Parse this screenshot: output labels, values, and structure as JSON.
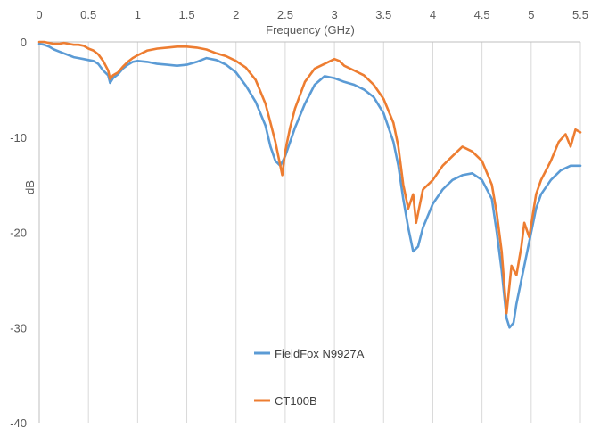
{
  "chart_data": {
    "type": "line",
    "title": "",
    "xlabel": "Frequency (GHz)",
    "ylabel": "dB",
    "xlim": [
      0,
      5.5
    ],
    "ylim": [
      -40,
      0
    ],
    "x_ticks": [
      "0",
      "0.5",
      "1",
      "1.5",
      "2",
      "2.5",
      "3",
      "3.5",
      "4",
      "4.5",
      "5",
      "5.5"
    ],
    "y_ticks": [
      "0",
      "-10",
      "-20",
      "-30",
      "-40"
    ],
    "x_axis_position": "top",
    "grid": "vertical",
    "legend_position": "inside-bottom-center",
    "series": [
      {
        "name": "FieldFox N9927A",
        "color": "#5B9BD5",
        "points": [
          [
            0.0,
            -0.2
          ],
          [
            0.05,
            -0.3
          ],
          [
            0.1,
            -0.5
          ],
          [
            0.15,
            -0.8
          ],
          [
            0.2,
            -1.0
          ],
          [
            0.25,
            -1.2
          ],
          [
            0.3,
            -1.4
          ],
          [
            0.35,
            -1.6
          ],
          [
            0.4,
            -1.7
          ],
          [
            0.45,
            -1.8
          ],
          [
            0.5,
            -1.9
          ],
          [
            0.55,
            -2.0
          ],
          [
            0.6,
            -2.3
          ],
          [
            0.65,
            -3.0
          ],
          [
            0.7,
            -3.5
          ],
          [
            0.72,
            -4.3
          ],
          [
            0.75,
            -3.8
          ],
          [
            0.8,
            -3.4
          ],
          [
            0.85,
            -2.8
          ],
          [
            0.9,
            -2.4
          ],
          [
            0.95,
            -2.1
          ],
          [
            1.0,
            -2.0
          ],
          [
            1.1,
            -2.1
          ],
          [
            1.2,
            -2.3
          ],
          [
            1.3,
            -2.4
          ],
          [
            1.4,
            -2.5
          ],
          [
            1.5,
            -2.4
          ],
          [
            1.6,
            -2.1
          ],
          [
            1.7,
            -1.7
          ],
          [
            1.8,
            -1.9
          ],
          [
            1.9,
            -2.4
          ],
          [
            2.0,
            -3.2
          ],
          [
            2.1,
            -4.6
          ],
          [
            2.2,
            -6.3
          ],
          [
            2.3,
            -8.8
          ],
          [
            2.35,
            -11.0
          ],
          [
            2.4,
            -12.5
          ],
          [
            2.45,
            -13.0
          ],
          [
            2.5,
            -12.0
          ],
          [
            2.55,
            -10.5
          ],
          [
            2.6,
            -9.0
          ],
          [
            2.7,
            -6.5
          ],
          [
            2.8,
            -4.5
          ],
          [
            2.9,
            -3.6
          ],
          [
            3.0,
            -3.8
          ],
          [
            3.1,
            -4.2
          ],
          [
            3.2,
            -4.5
          ],
          [
            3.3,
            -5.0
          ],
          [
            3.4,
            -5.8
          ],
          [
            3.5,
            -7.5
          ],
          [
            3.6,
            -10.5
          ],
          [
            3.65,
            -13.0
          ],
          [
            3.7,
            -16.5
          ],
          [
            3.75,
            -19.5
          ],
          [
            3.8,
            -22.0
          ],
          [
            3.85,
            -21.5
          ],
          [
            3.9,
            -19.5
          ],
          [
            4.0,
            -17.0
          ],
          [
            4.1,
            -15.5
          ],
          [
            4.2,
            -14.5
          ],
          [
            4.3,
            -14.0
          ],
          [
            4.4,
            -13.8
          ],
          [
            4.5,
            -14.5
          ],
          [
            4.6,
            -16.5
          ],
          [
            4.65,
            -20.0
          ],
          [
            4.7,
            -24.0
          ],
          [
            4.75,
            -29.0
          ],
          [
            4.78,
            -30.0
          ],
          [
            4.82,
            -29.5
          ],
          [
            4.85,
            -27.5
          ],
          [
            4.9,
            -25.0
          ],
          [
            5.0,
            -20.0
          ],
          [
            5.05,
            -17.5
          ],
          [
            5.1,
            -16.0
          ],
          [
            5.2,
            -14.5
          ],
          [
            5.3,
            -13.5
          ],
          [
            5.4,
            -13.0
          ],
          [
            5.5,
            -13.0
          ]
        ]
      },
      {
        "name": "CT100B",
        "color": "#ED7D31",
        "points": [
          [
            0.0,
            0.0
          ],
          [
            0.05,
            0.0
          ],
          [
            0.1,
            -0.1
          ],
          [
            0.15,
            -0.2
          ],
          [
            0.2,
            -0.2
          ],
          [
            0.25,
            -0.1
          ],
          [
            0.3,
            -0.2
          ],
          [
            0.35,
            -0.3
          ],
          [
            0.4,
            -0.3
          ],
          [
            0.45,
            -0.4
          ],
          [
            0.5,
            -0.7
          ],
          [
            0.55,
            -0.9
          ],
          [
            0.6,
            -1.3
          ],
          [
            0.65,
            -2.0
          ],
          [
            0.7,
            -3.0
          ],
          [
            0.72,
            -3.9
          ],
          [
            0.75,
            -3.5
          ],
          [
            0.8,
            -3.2
          ],
          [
            0.85,
            -2.6
          ],
          [
            0.9,
            -2.1
          ],
          [
            0.95,
            -1.7
          ],
          [
            1.0,
            -1.4
          ],
          [
            1.1,
            -0.9
          ],
          [
            1.2,
            -0.7
          ],
          [
            1.3,
            -0.6
          ],
          [
            1.4,
            -0.5
          ],
          [
            1.5,
            -0.5
          ],
          [
            1.6,
            -0.6
          ],
          [
            1.7,
            -0.8
          ],
          [
            1.8,
            -1.2
          ],
          [
            1.9,
            -1.5
          ],
          [
            2.0,
            -2.0
          ],
          [
            2.1,
            -2.7
          ],
          [
            2.2,
            -4.0
          ],
          [
            2.3,
            -6.5
          ],
          [
            2.35,
            -8.5
          ],
          [
            2.4,
            -10.5
          ],
          [
            2.45,
            -13.0
          ],
          [
            2.47,
            -14.0
          ],
          [
            2.5,
            -11.5
          ],
          [
            2.55,
            -9.0
          ],
          [
            2.6,
            -7.0
          ],
          [
            2.7,
            -4.2
          ],
          [
            2.8,
            -2.8
          ],
          [
            2.9,
            -2.3
          ],
          [
            3.0,
            -1.8
          ],
          [
            3.05,
            -2.0
          ],
          [
            3.1,
            -2.5
          ],
          [
            3.2,
            -3.0
          ],
          [
            3.3,
            -3.5
          ],
          [
            3.4,
            -4.5
          ],
          [
            3.5,
            -6.0
          ],
          [
            3.6,
            -8.5
          ],
          [
            3.65,
            -11.0
          ],
          [
            3.7,
            -15.0
          ],
          [
            3.75,
            -17.5
          ],
          [
            3.8,
            -16.0
          ],
          [
            3.83,
            -19.0
          ],
          [
            3.9,
            -15.5
          ],
          [
            4.0,
            -14.5
          ],
          [
            4.1,
            -13.0
          ],
          [
            4.2,
            -12.0
          ],
          [
            4.3,
            -11.0
          ],
          [
            4.4,
            -11.5
          ],
          [
            4.5,
            -12.5
          ],
          [
            4.6,
            -15.0
          ],
          [
            4.65,
            -18.0
          ],
          [
            4.7,
            -22.0
          ],
          [
            4.75,
            -28.5
          ],
          [
            4.8,
            -23.5
          ],
          [
            4.85,
            -24.5
          ],
          [
            4.9,
            -21.5
          ],
          [
            4.93,
            -19.0
          ],
          [
            4.98,
            -20.5
          ],
          [
            5.05,
            -16.0
          ],
          [
            5.1,
            -14.5
          ],
          [
            5.2,
            -12.5
          ],
          [
            5.28,
            -10.5
          ],
          [
            5.35,
            -9.7
          ],
          [
            5.4,
            -11.0
          ],
          [
            5.45,
            -9.2
          ],
          [
            5.5,
            -9.5
          ]
        ]
      }
    ]
  }
}
